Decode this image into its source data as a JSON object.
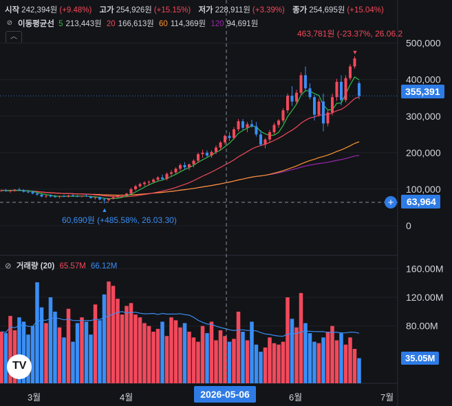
{
  "header": {
    "open_label": "시작",
    "open_value": "242,394원",
    "open_pct": "(+9.48%)",
    "high_label": "고가",
    "high_value": "254,926원",
    "high_pct": "(+15.15%)",
    "low_label": "저가",
    "low_value": "228,911원",
    "low_pct": "(+3.39%)",
    "close_label": "종가",
    "close_value": "254,695원",
    "close_pct": "(+15.04%)"
  },
  "ma_legend": {
    "title": "이동평균선",
    "items": [
      {
        "period": "5",
        "value": "213,443원",
        "color": "#2fbf4a"
      },
      {
        "period": "20",
        "value": "166,613원",
        "color": "#f2495c"
      },
      {
        "period": "60",
        "value": "114,369원",
        "color": "#ff9632"
      },
      {
        "period": "120",
        "value": "94,691원",
        "color": "#9c27b0"
      }
    ]
  },
  "volume_legend": {
    "title": "거래량 (20)",
    "value1": "65.57M",
    "value2": "66.12M",
    "color1": "#f2495c",
    "color2": "#3a8ef6"
  },
  "annotations": {
    "high": "463,781원 (-23.37%, 26.06.2",
    "low": "60,690원 (+485.58%, 26.03.30)"
  },
  "price_badges": {
    "last": "355,391",
    "crosshair": "63,964"
  },
  "volume_badge": "35.05M",
  "x_crosshair_label": "2026-05-06",
  "colors": {
    "up": "#f2495c",
    "down": "#3a8ef6",
    "accent": "#2e7be6",
    "bg": "#131417"
  },
  "chart_data": {
    "type": "candlestick",
    "y_ticks": [
      "500,000",
      "400,000",
      "300,000",
      "200,000",
      "100,000",
      "0"
    ],
    "y_tick_values": [
      500000,
      400000,
      300000,
      200000,
      100000,
      0
    ],
    "ylim": [
      0,
      520000
    ],
    "volume_ticks": [
      "160.00M",
      "120.00M",
      "80.00M"
    ],
    "volume_tick_values": [
      160,
      120,
      80
    ],
    "volume_ylim": [
      0,
      170
    ],
    "x_ticks": [
      "3월",
      "4월",
      "6월",
      "7월"
    ],
    "last_price": 355391,
    "crosshair_price": 63964,
    "candles": [
      [
        96000,
        99000,
        92000,
        97000
      ],
      [
        97000,
        101000,
        93000,
        95000
      ],
      [
        95000,
        98000,
        90000,
        96000
      ],
      [
        96000,
        100000,
        93000,
        99000
      ],
      [
        99000,
        104000,
        95000,
        97000
      ],
      [
        97000,
        100000,
        91000,
        93000
      ],
      [
        93000,
        97000,
        89000,
        92000
      ],
      [
        92000,
        96000,
        86000,
        88000
      ],
      [
        88000,
        91000,
        82000,
        85000
      ],
      [
        85000,
        88000,
        78000,
        80000
      ],
      [
        80000,
        84000,
        76000,
        82000
      ],
      [
        82000,
        86000,
        78000,
        80000
      ],
      [
        80000,
        84000,
        77000,
        79000
      ],
      [
        79000,
        83000,
        75000,
        81000
      ],
      [
        81000,
        85000,
        78000,
        80000
      ],
      [
        80000,
        84000,
        77000,
        83000
      ],
      [
        83000,
        86000,
        79000,
        81000
      ],
      [
        81000,
        84000,
        78000,
        80000
      ],
      [
        80000,
        83000,
        77000,
        82000
      ],
      [
        82000,
        85000,
        79000,
        80000
      ],
      [
        80000,
        82000,
        74000,
        76000
      ],
      [
        76000,
        79000,
        72000,
        78000
      ],
      [
        78000,
        80000,
        70000,
        72000
      ],
      [
        72000,
        76000,
        60690,
        70000
      ],
      [
        70000,
        76000,
        66000,
        74000
      ],
      [
        74000,
        80000,
        72000,
        78000
      ],
      [
        78000,
        84000,
        76000,
        82000
      ],
      [
        82000,
        86000,
        78000,
        84000
      ],
      [
        84000,
        90000,
        82000,
        88000
      ],
      [
        88000,
        104000,
        86000,
        100000
      ],
      [
        100000,
        112000,
        96000,
        108000
      ],
      [
        108000,
        118000,
        104000,
        114000
      ],
      [
        114000,
        122000,
        108000,
        118000
      ],
      [
        118000,
        124000,
        110000,
        120000
      ],
      [
        120000,
        130000,
        116000,
        126000
      ],
      [
        126000,
        136000,
        120000,
        132000
      ],
      [
        132000,
        140000,
        124000,
        128000
      ],
      [
        128000,
        146000,
        124000,
        142000
      ],
      [
        142000,
        152000,
        136000,
        146000
      ],
      [
        146000,
        160000,
        142000,
        156000
      ],
      [
        156000,
        170000,
        150000,
        166000
      ],
      [
        166000,
        174000,
        154000,
        160000
      ],
      [
        160000,
        170000,
        152000,
        168000
      ],
      [
        168000,
        182000,
        160000,
        178000
      ],
      [
        178000,
        200000,
        172000,
        196000
      ],
      [
        196000,
        208000,
        186000,
        200000
      ],
      [
        200000,
        206000,
        188000,
        192000
      ],
      [
        192000,
        206000,
        186000,
        202000
      ],
      [
        202000,
        220000,
        196000,
        214000
      ],
      [
        214000,
        232000,
        208000,
        228000
      ],
      [
        228000,
        250000,
        222000,
        246000
      ],
      [
        246000,
        256000,
        232000,
        240000
      ],
      [
        240000,
        270000,
        236000,
        264000
      ],
      [
        264000,
        292000,
        258000,
        286000
      ],
      [
        286000,
        292000,
        262000,
        268000
      ],
      [
        268000,
        284000,
        256000,
        278000
      ],
      [
        278000,
        290000,
        268000,
        272000
      ],
      [
        272000,
        284000,
        244000,
        250000
      ],
      [
        250000,
        262000,
        218000,
        222000
      ],
      [
        222000,
        240000,
        212000,
        236000
      ],
      [
        236000,
        262000,
        228000,
        256000
      ],
      [
        256000,
        282000,
        250000,
        276000
      ],
      [
        276000,
        292000,
        268000,
        288000
      ],
      [
        288000,
        322000,
        282000,
        316000
      ],
      [
        316000,
        362000,
        308000,
        356000
      ],
      [
        356000,
        382000,
        328000,
        340000
      ],
      [
        340000,
        372000,
        334000,
        364000
      ],
      [
        364000,
        420000,
        356000,
        412000
      ],
      [
        412000,
        436000,
        368000,
        376000
      ],
      [
        376000,
        390000,
        346000,
        352000
      ],
      [
        352000,
        358000,
        288000,
        304000
      ],
      [
        304000,
        348000,
        298000,
        340000
      ],
      [
        340000,
        362000,
        258000,
        280000
      ],
      [
        280000,
        318000,
        272000,
        310000
      ],
      [
        310000,
        362000,
        302000,
        352000
      ],
      [
        352000,
        402000,
        342000,
        394000
      ],
      [
        394000,
        412000,
        330000,
        344000
      ],
      [
        344000,
        412000,
        338000,
        404000
      ],
      [
        404000,
        442000,
        398000,
        436000
      ],
      [
        436000,
        463781,
        430000,
        458000
      ],
      [
        390000,
        396000,
        346000,
        355391
      ]
    ],
    "volumes": [
      72,
      70,
      94,
      74,
      92,
      86,
      68,
      80,
      141,
      106,
      84,
      120,
      100,
      78,
      64,
      104,
      58,
      84,
      92,
      86,
      68,
      110,
      88,
      124,
      142,
      136,
      118,
      96,
      108,
      112,
      96,
      92,
      84,
      80,
      72,
      76,
      86,
      66,
      92,
      88,
      78,
      84,
      72,
      64,
      58,
      80,
      70,
      86,
      60,
      74,
      66,
      58,
      62,
      100,
      72,
      60,
      86,
      54,
      44,
      50,
      64,
      56,
      54,
      58,
      120,
      90,
      78,
      126,
      84,
      70,
      58,
      56,
      64,
      72,
      80,
      60,
      70,
      54,
      64,
      48,
      35.05
    ],
    "ma_levels": {
      "ma5": 213443,
      "ma20": 166613,
      "ma60": 114369,
      "ma120": 94691,
      "vol_ma20": 66.12
    }
  }
}
